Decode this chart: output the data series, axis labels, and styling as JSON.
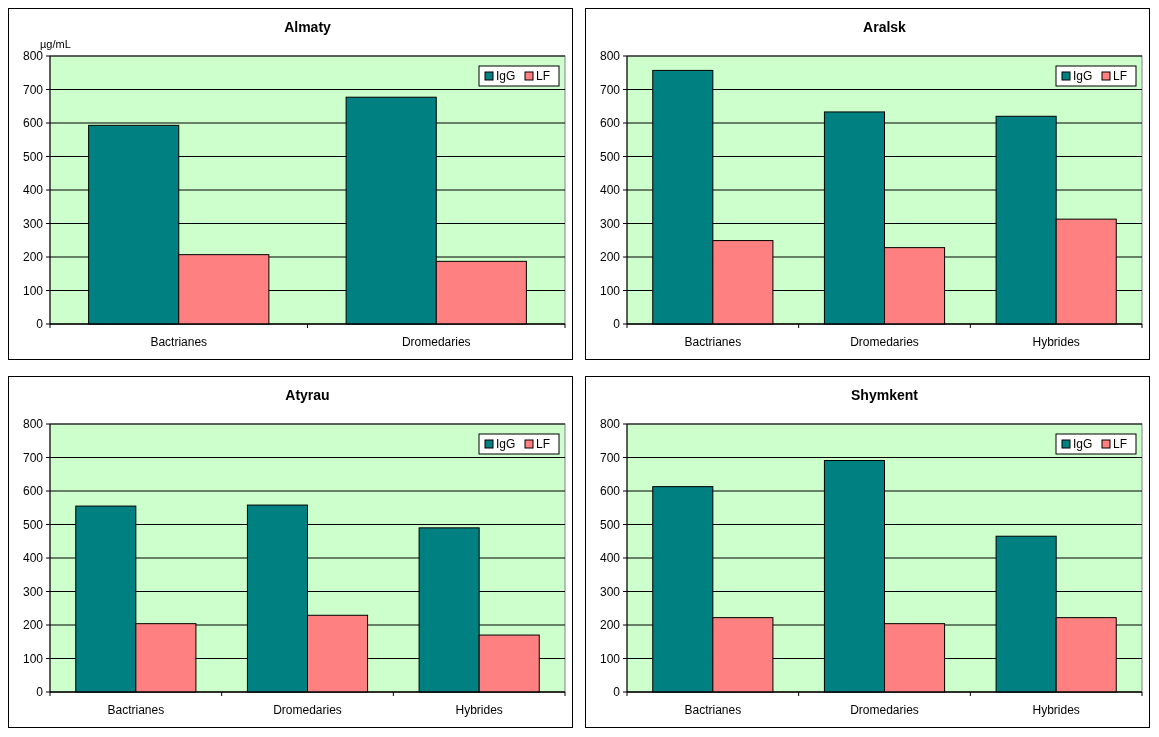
{
  "chart_data": [
    {
      "type": "bar",
      "title": "Almaty",
      "ylabel": "µg/mL",
      "categories": [
        "Bactrianes",
        "Dromedaries"
      ],
      "ylim": [
        0,
        800
      ],
      "yticks": [
        0,
        100,
        200,
        300,
        400,
        500,
        600,
        700,
        800
      ],
      "grid": "y",
      "legend": "top right",
      "series": [
        {
          "name": "IgG",
          "color": "#008080",
          "values": [
            593,
            677
          ]
        },
        {
          "name": "LF",
          "color": "#ff8080",
          "values": [
            207,
            187
          ]
        }
      ]
    },
    {
      "type": "bar",
      "title": "Aralsk",
      "categories": [
        "Bactrianes",
        "Dromedaries",
        "Hybrides"
      ],
      "ylim": [
        0,
        800
      ],
      "yticks": [
        0,
        100,
        200,
        300,
        400,
        500,
        600,
        700,
        800
      ],
      "grid": "y",
      "legend": "top right",
      "series": [
        {
          "name": "IgG",
          "color": "#008080",
          "values": [
            757,
            633,
            620
          ]
        },
        {
          "name": "LF",
          "color": "#ff8080",
          "values": [
            249,
            228,
            313
          ]
        }
      ]
    },
    {
      "type": "bar",
      "title": "Atyrau",
      "categories": [
        "Bactrianes",
        "Dromedaries",
        "Hybrides"
      ],
      "ylim": [
        0,
        800
      ],
      "yticks": [
        0,
        100,
        200,
        300,
        400,
        500,
        600,
        700,
        800
      ],
      "grid": "y",
      "legend": "top right",
      "series": [
        {
          "name": "IgG",
          "color": "#008080",
          "values": [
            555,
            558,
            490
          ]
        },
        {
          "name": "LF",
          "color": "#ff8080",
          "values": [
            204,
            229,
            170
          ]
        }
      ]
    },
    {
      "type": "bar",
      "title": "Shymkent",
      "categories": [
        "Bactrianes",
        "Dromedaries",
        "Hybrides"
      ],
      "ylim": [
        0,
        800
      ],
      "yticks": [
        0,
        100,
        200,
        300,
        400,
        500,
        600,
        700,
        800
      ],
      "grid": "y",
      "legend": "top right",
      "series": [
        {
          "name": "IgG",
          "color": "#008080",
          "values": [
            613,
            691,
            465
          ]
        },
        {
          "name": "LF",
          "color": "#ff8080",
          "values": [
            222,
            204,
            222
          ]
        }
      ]
    }
  ]
}
